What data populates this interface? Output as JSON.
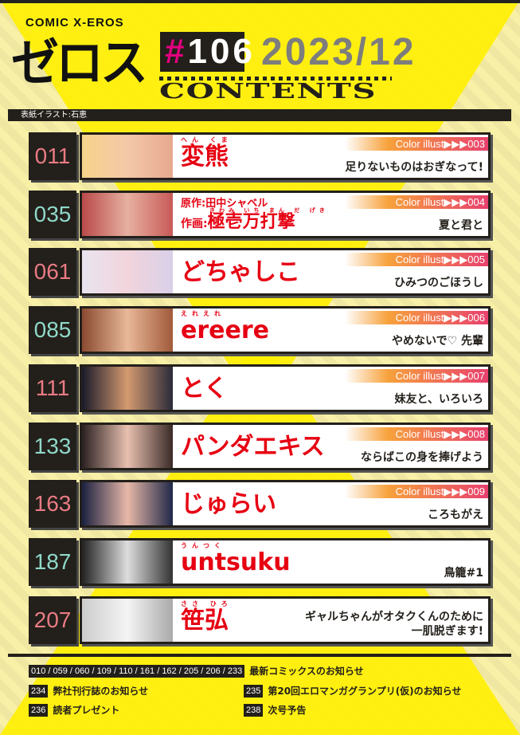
{
  "header": {
    "brand_small": "COMIC X-EROS",
    "brand_big": "ゼロス",
    "issue_hash": "#",
    "issue_number": "106",
    "date": "2023/12",
    "contents_label": "CONTENTS",
    "cover_credit": "表紙イラスト:石恵"
  },
  "colors": {
    "accent_red": "#e60012",
    "pink_number": "#e97b84",
    "teal_number": "#8fd9c9",
    "yellow": "#ffef00",
    "magenta": "#e4007f"
  },
  "entries": [
    {
      "page": "011",
      "ruby": "へん くま",
      "author": "変熊",
      "color_illust": "Color illust▶▶▶003",
      "title": "足りないものはおぎなって!"
    },
    {
      "page": "035",
      "original": "原作:田中シャベル",
      "art_prefix": "作画:",
      "ruby": "きわみ いち まん だ げき",
      "author": "極壱万打撃",
      "color_illust": "Color illust▶▶▶004",
      "title": "夏と君と"
    },
    {
      "page": "061",
      "author": "どちゃしこ",
      "color_illust": "Color illust▶▶▶005",
      "title": "ひみつのごほうし"
    },
    {
      "page": "085",
      "ruby": "えれえれ",
      "author": "ereere",
      "color_illust": "Color illust▶▶▶006",
      "title": "やめないで♡ 先輩"
    },
    {
      "page": "111",
      "author": "とく",
      "color_illust": "Color illust▶▶▶007",
      "title": "妹友と、いろいろ"
    },
    {
      "page": "133",
      "author": "パンダエキス",
      "color_illust": "Color illust▶▶▶008",
      "title": "ならばこの身を捧げよう"
    },
    {
      "page": "163",
      "author": "じゅらい",
      "color_illust": "Color illust▶▶▶009",
      "title": "ころもがえ"
    },
    {
      "page": "187",
      "ruby": "うんつく",
      "author": "untsuku",
      "title": "鳥籠#1"
    },
    {
      "page": "207",
      "ruby": "ささ ひろ",
      "author": "笹弘",
      "title": "ギャルちゃんがオタクくんのために\n一肌脱ぎます!"
    }
  ],
  "misc": [
    {
      "pages": "010 / 059 / 060 / 109 / 110 / 161 / 162 / 205 / 206 / 233",
      "label": "最新コミックスのお知らせ"
    },
    {
      "pages": "234",
      "label": "弊社刊行誌のお知らせ"
    },
    {
      "pages": "235",
      "label": "第20回エロマンガグランプリ(仮)のお知らせ"
    },
    {
      "pages": "236",
      "label": "読者プレゼント"
    },
    {
      "pages": "238",
      "label": "次号予告"
    }
  ]
}
